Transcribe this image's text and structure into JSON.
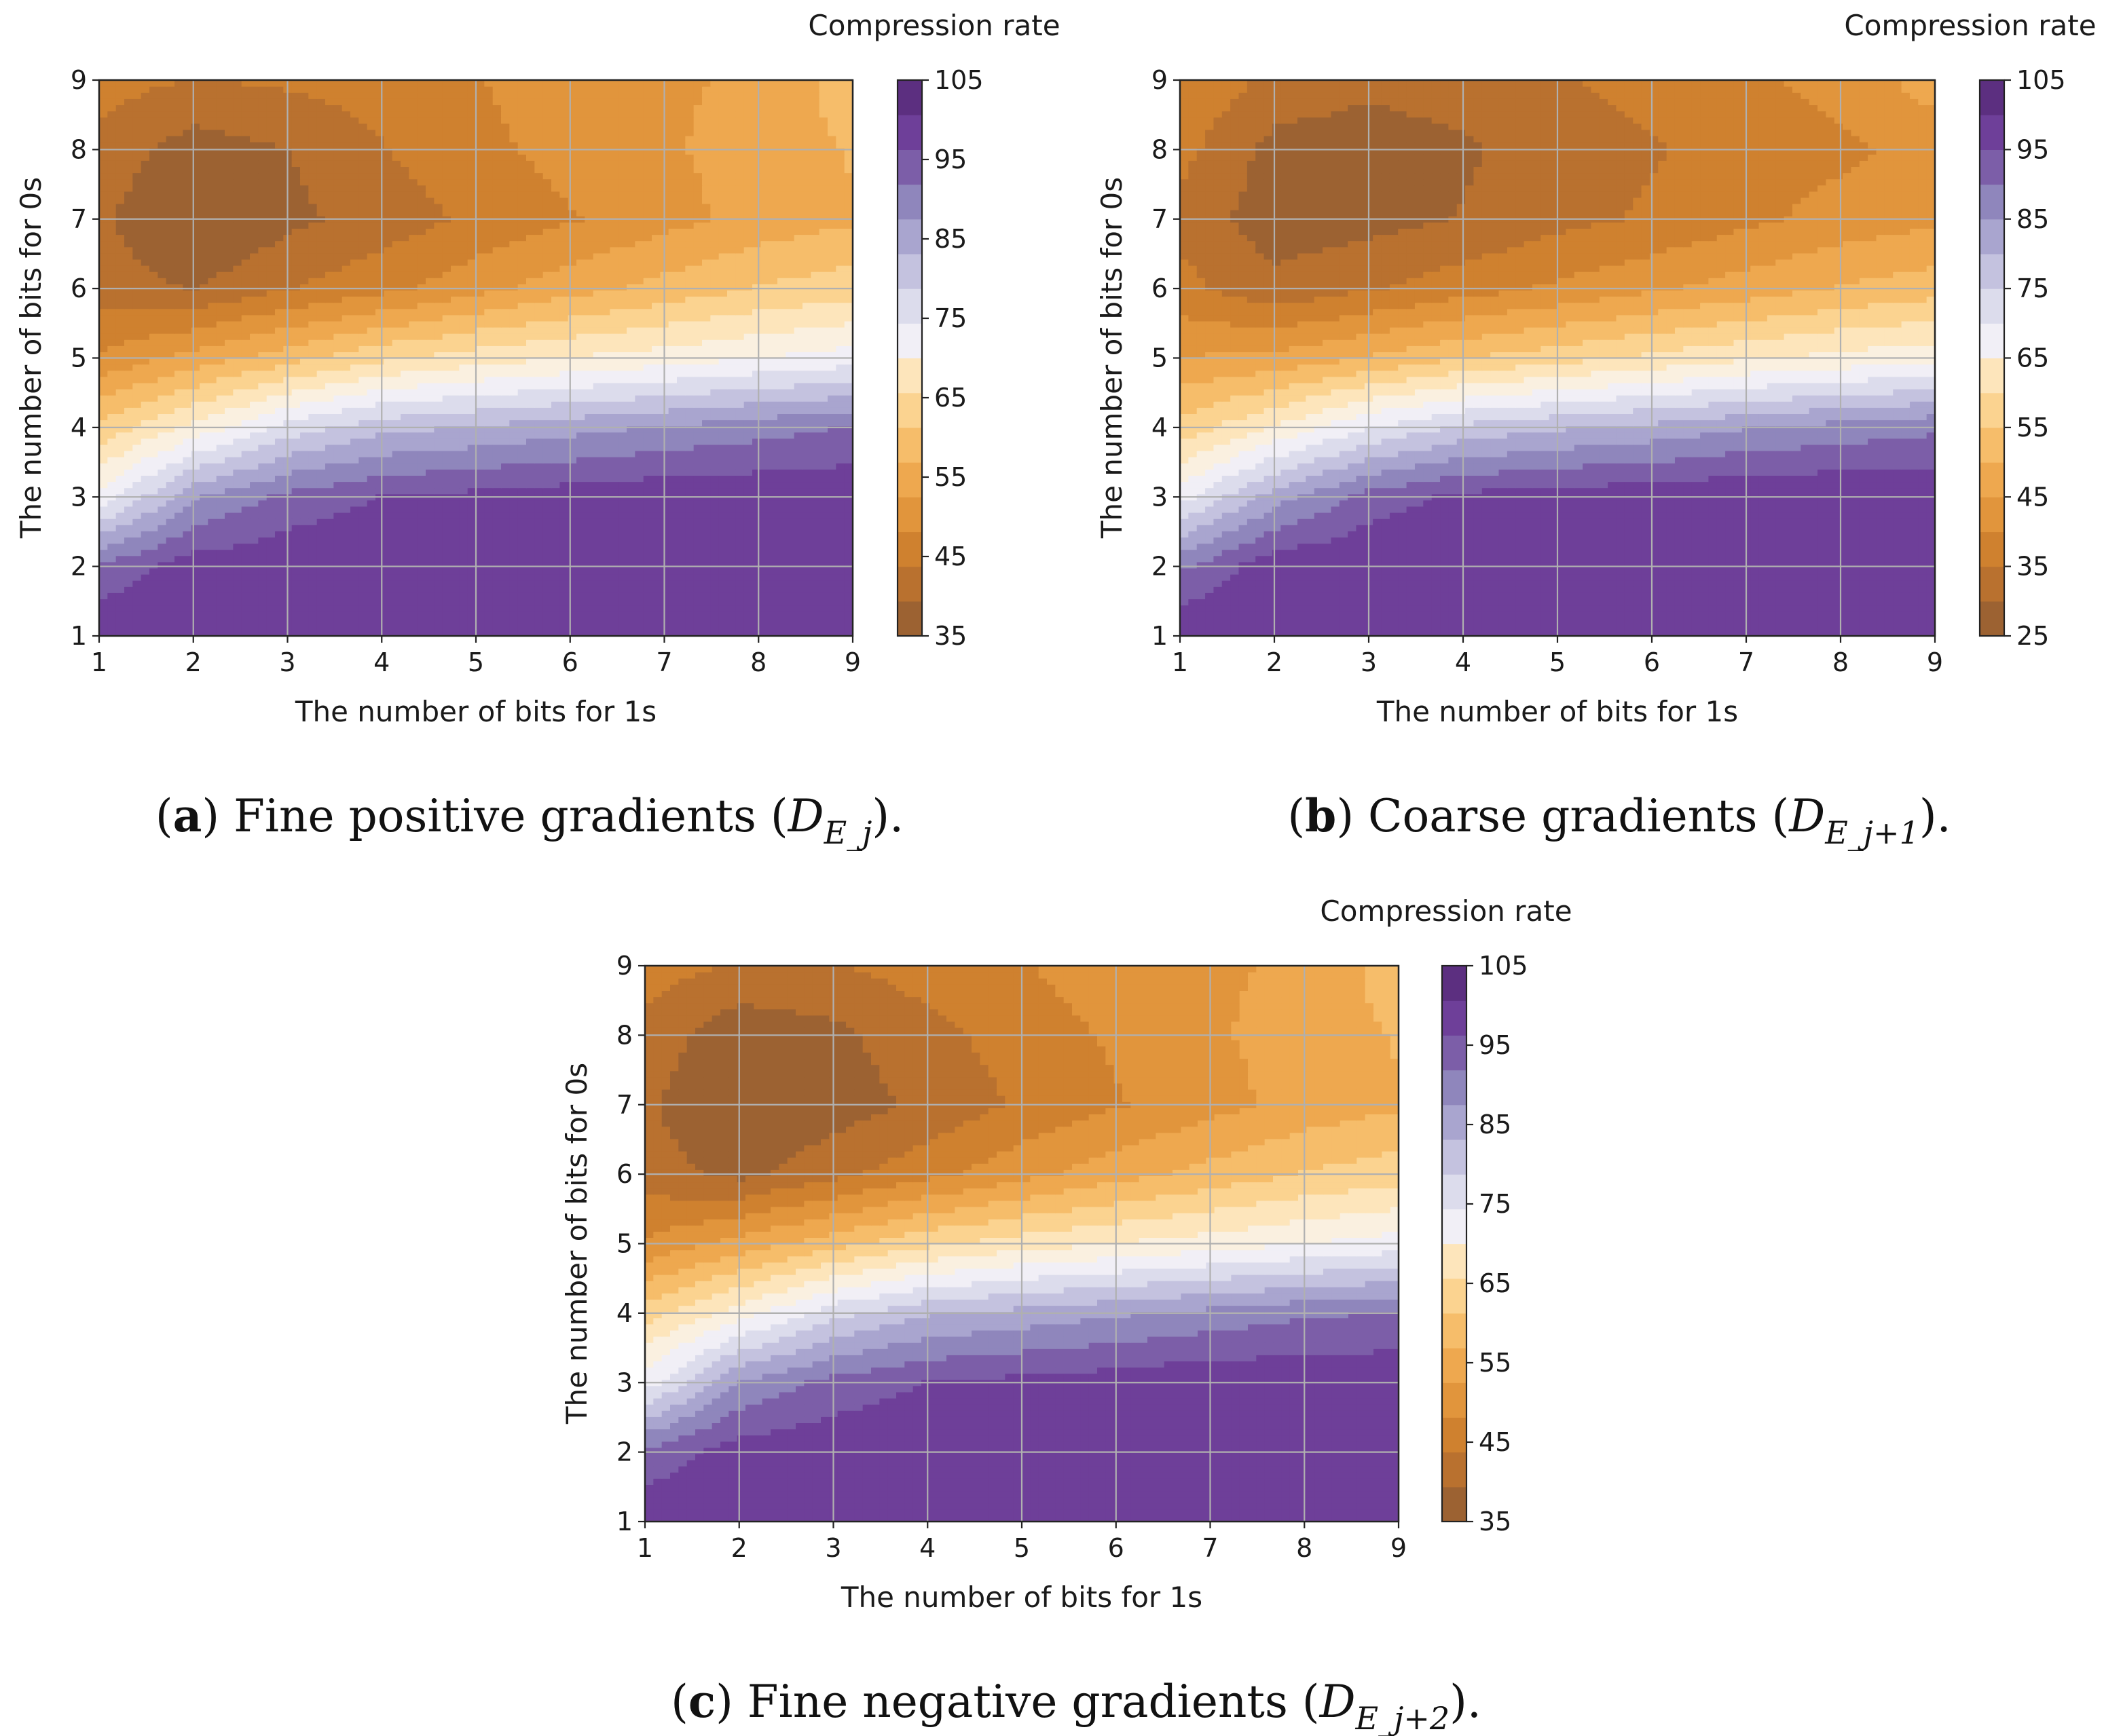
{
  "colors": {
    "grid": "#b0b0b0",
    "levels_low_to_high": [
      "#9c6232",
      "#b9712f",
      "#cf812f",
      "#e1953c",
      "#eea84f",
      "#f6bd6a",
      "#fbd390",
      "#fde5bb",
      "#faf0e0",
      "#f1eff6",
      "#dcdcec",
      "#c4c2df",
      "#a9a5cf",
      "#8f86bc",
      "#7c5ea8",
      "#6e3f99",
      "#5c2f80"
    ]
  },
  "chart_data": [
    {
      "id": "a",
      "type": "heatmap",
      "plot_kind": "filled-contour",
      "title": "Compression rate",
      "xlabel": "The number of bits for 1s",
      "ylabel": "The number of bits for 0s",
      "x": [
        1,
        2,
        3,
        4,
        5,
        6,
        7,
        8,
        9
      ],
      "y": [
        1,
        2,
        3,
        4,
        5,
        6,
        7,
        8,
        9
      ],
      "xlim": [
        1,
        9
      ],
      "ylim": [
        1,
        9
      ],
      "xticks": [
        "1",
        "2",
        "3",
        "4",
        "5",
        "6",
        "7",
        "8",
        "9"
      ],
      "yticks": [
        "1",
        "2",
        "3",
        "4",
        "5",
        "6",
        "7",
        "8",
        "9"
      ],
      "grid": true,
      "colorbar": {
        "label": "Compression rate",
        "range": [
          35,
          105
        ],
        "ticks": [
          "35",
          "45",
          "55",
          "65",
          "75",
          "85",
          "95",
          "105"
        ],
        "ticks_values": [
          35,
          45,
          55,
          65,
          75,
          85,
          95,
          105
        ]
      },
      "values": [
        [
          100,
          100,
          100,
          100,
          100,
          100,
          100,
          100,
          100
        ],
        [
          94,
          99,
          100,
          100,
          100,
          100,
          100,
          100,
          100
        ],
        [
          73,
          88,
          94,
          97,
          98,
          99,
          100,
          100,
          100
        ],
        [
          61,
          69,
          78,
          83,
          85,
          87,
          89,
          91,
          93
        ],
        [
          48,
          53,
          58,
          63,
          66,
          68,
          70,
          72,
          74
        ],
        [
          41,
          39,
          43,
          46,
          50,
          54,
          57,
          60,
          62
        ],
        [
          40,
          34,
          38,
          41,
          44,
          47,
          50,
          53,
          55
        ],
        [
          42,
          37,
          39,
          43,
          46,
          49,
          51,
          53,
          56
        ],
        [
          45,
          43,
          44,
          45,
          47,
          50,
          51,
          52,
          58
        ]
      ],
      "caption": {
        "label": "a",
        "text": "Fine positive gradients (",
        "math": "D",
        "sub": "E_j",
        "end": ")."
      }
    },
    {
      "id": "b",
      "type": "heatmap",
      "plot_kind": "filled-contour",
      "title": "Compression rate",
      "xlabel": "The number of bits for 1s",
      "ylabel": "The number of bits for 0s",
      "x": [
        1,
        2,
        3,
        4,
        5,
        6,
        7,
        8,
        9
      ],
      "y": [
        1,
        2,
        3,
        4,
        5,
        6,
        7,
        8,
        9
      ],
      "xlim": [
        1,
        9
      ],
      "ylim": [
        1,
        9
      ],
      "xticks": [
        "1",
        "2",
        "3",
        "4",
        "5",
        "6",
        "7",
        "8",
        "9"
      ],
      "yticks": [
        "1",
        "2",
        "3",
        "4",
        "5",
        "6",
        "7",
        "8",
        "9"
      ],
      "grid": true,
      "colorbar": {
        "label": "Compression rate",
        "range": [
          25,
          105
        ],
        "ticks": [
          "25",
          "35",
          "45",
          "55",
          "65",
          "75",
          "85",
          "95",
          "105"
        ],
        "ticks_values": [
          25,
          35,
          45,
          55,
          65,
          75,
          85,
          95,
          105
        ]
      },
      "values": [
        [
          100,
          100,
          100,
          100,
          100,
          100,
          100,
          100,
          100
        ],
        [
          90,
          99,
          100,
          100,
          100,
          100,
          100,
          100,
          100
        ],
        [
          70,
          84,
          93,
          97,
          98,
          99,
          100,
          100,
          100
        ],
        [
          55,
          63,
          72,
          78,
          81,
          83,
          86,
          88,
          90
        ],
        [
          44,
          45,
          49,
          53,
          56,
          59,
          62,
          64,
          66
        ],
        [
          36,
          31,
          34,
          37,
          40,
          43,
          46,
          49,
          51
        ],
        [
          33,
          27,
          28,
          30,
          33,
          35,
          38,
          41,
          43
        ],
        [
          36,
          28,
          27,
          29,
          32,
          34,
          36,
          38,
          41
        ],
        [
          39,
          33,
          31,
          32,
          34,
          36,
          38,
          41,
          46
        ]
      ],
      "caption": {
        "label": "b",
        "text": "Coarse gradients (",
        "math": "D",
        "sub": "E_j+1",
        "end": ")."
      }
    },
    {
      "id": "c",
      "type": "heatmap",
      "plot_kind": "filled-contour",
      "title": "Compression rate",
      "xlabel": "The number of bits for 1s",
      "ylabel": "The number of bits for 0s",
      "x": [
        1,
        2,
        3,
        4,
        5,
        6,
        7,
        8,
        9
      ],
      "y": [
        1,
        2,
        3,
        4,
        5,
        6,
        7,
        8,
        9
      ],
      "xlim": [
        1,
        9
      ],
      "ylim": [
        1,
        9
      ],
      "xticks": [
        "1",
        "2",
        "3",
        "4",
        "5",
        "6",
        "7",
        "8",
        "9"
      ],
      "yticks": [
        "1",
        "2",
        "3",
        "4",
        "5",
        "6",
        "7",
        "8",
        "9"
      ],
      "grid": true,
      "colorbar": {
        "label": "Compression rate",
        "range": [
          35,
          105
        ],
        "ticks": [
          "35",
          "45",
          "55",
          "65",
          "75",
          "85",
          "95",
          "105"
        ],
        "ticks_values": [
          35,
          45,
          55,
          65,
          75,
          85,
          95,
          105
        ]
      },
      "values": [
        [
          100,
          100,
          100,
          100,
          100,
          100,
          100,
          100,
          100
        ],
        [
          94,
          99,
          100,
          100,
          100,
          100,
          100,
          100,
          100
        ],
        [
          74,
          89,
          94,
          97,
          98,
          99,
          100,
          100,
          100
        ],
        [
          62,
          70,
          79,
          84,
          86,
          88,
          90,
          92,
          93
        ],
        [
          48,
          53,
          58,
          63,
          66,
          68,
          70,
          72,
          74
        ],
        [
          41,
          38,
          42,
          46,
          50,
          54,
          57,
          60,
          62
        ],
        [
          40,
          34,
          37,
          40,
          44,
          47,
          50,
          53,
          55
        ],
        [
          42,
          36,
          38,
          42,
          45,
          48,
          51,
          53,
          56
        ],
        [
          45,
          43,
          43,
          45,
          47,
          50,
          51,
          52,
          58
        ]
      ],
      "caption": {
        "label": "c",
        "text": "Fine negative gradients (",
        "math": "D",
        "sub": "E_j+2",
        "end": ")."
      }
    }
  ]
}
